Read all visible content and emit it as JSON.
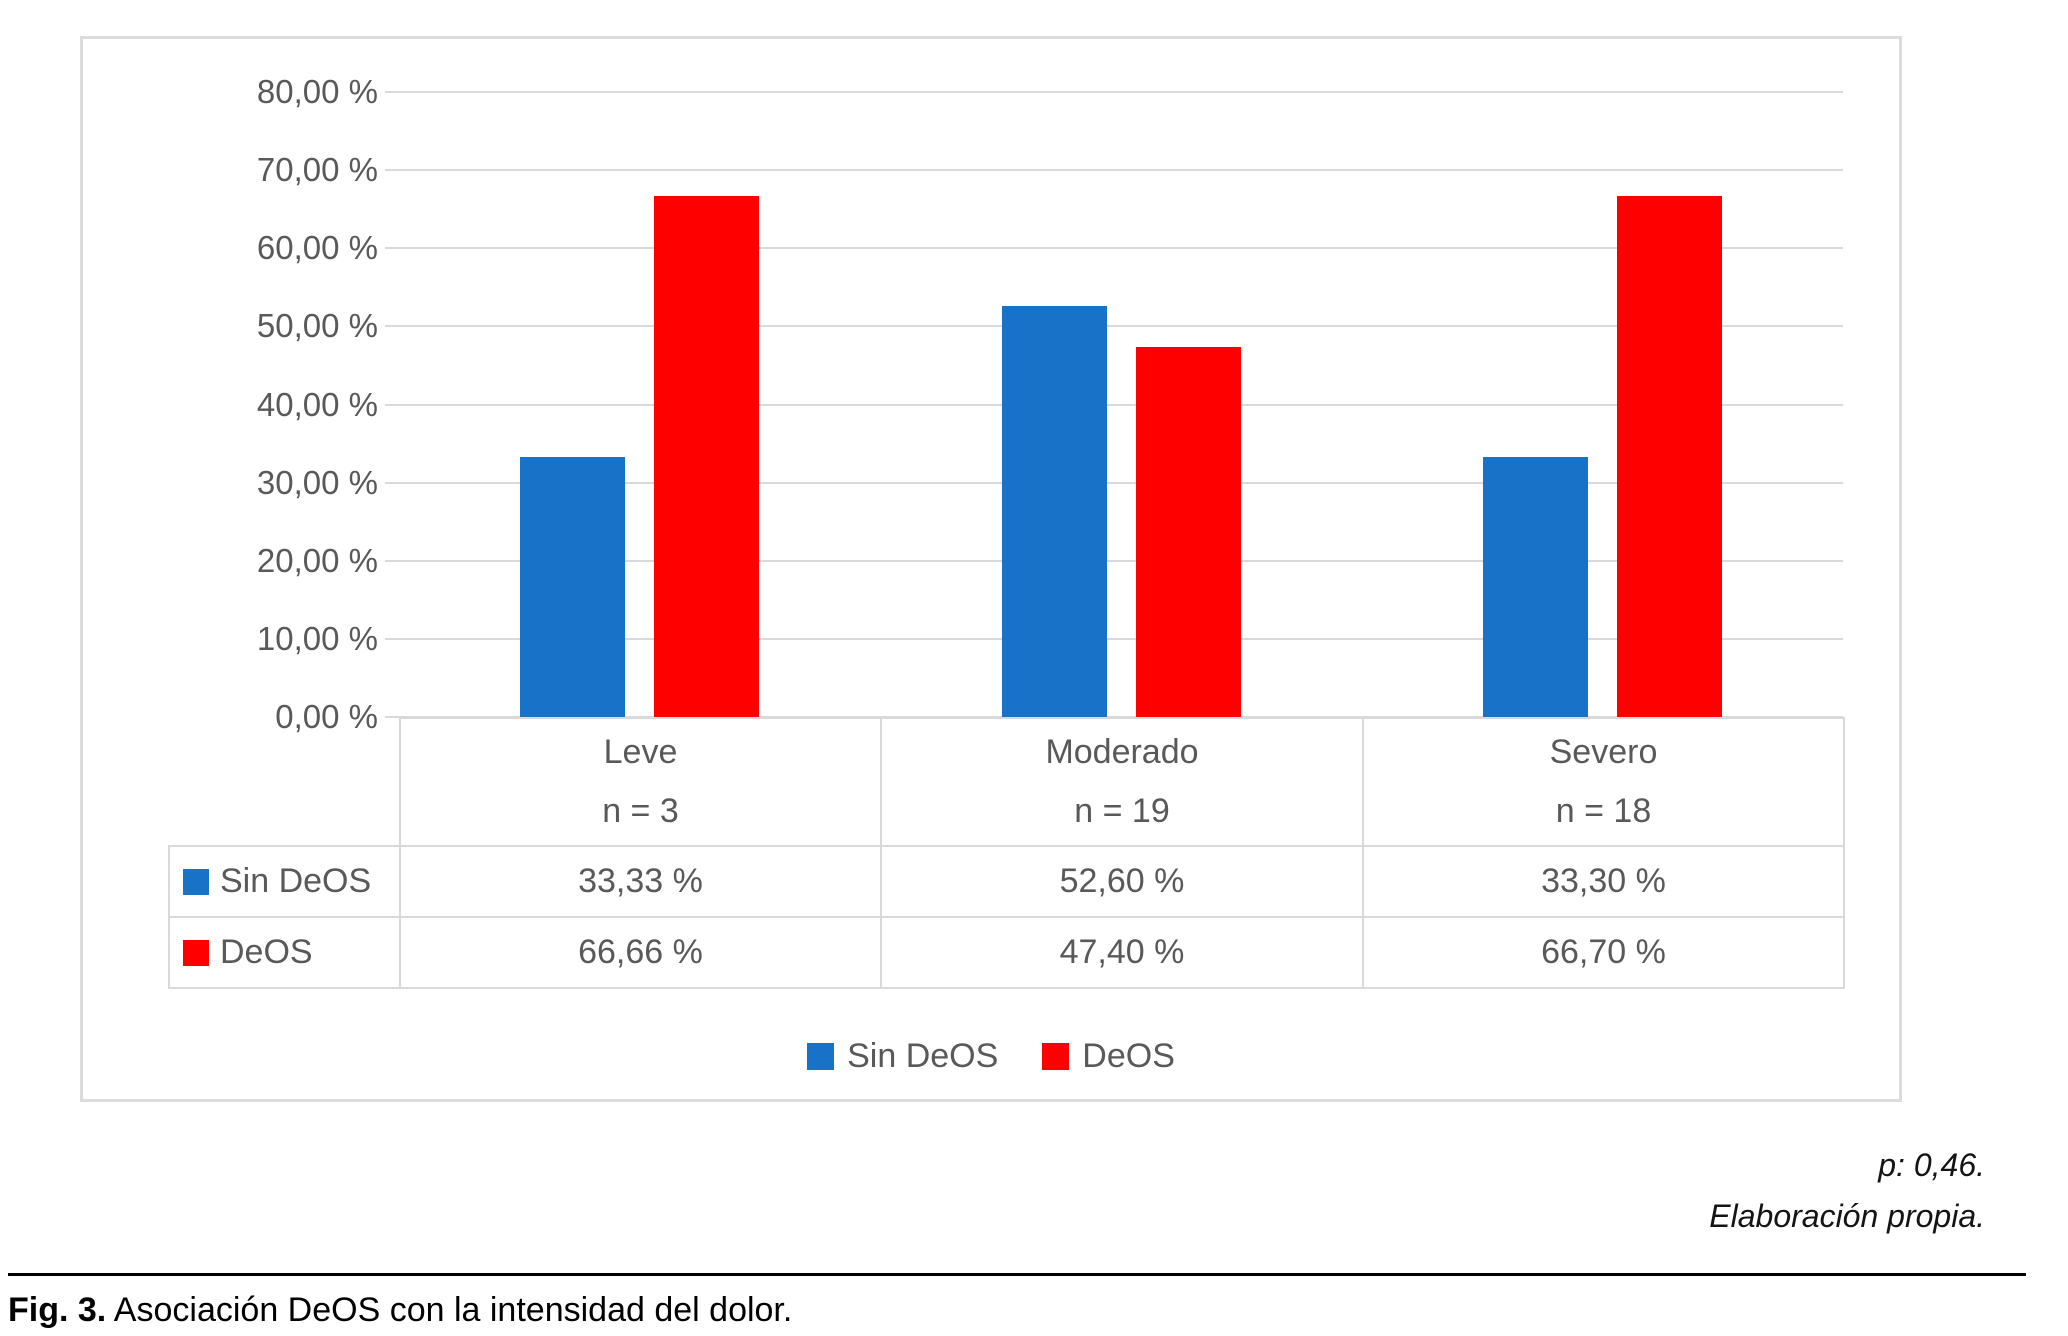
{
  "chart_data": {
    "type": "bar",
    "title": "",
    "categories": [
      "Leve",
      "Moderado",
      "Severo"
    ],
    "category_counts": [
      "n = 3",
      "n = 19",
      "n = 18"
    ],
    "series": [
      {
        "name": "Sin DeOS",
        "color": "#1772C8",
        "values": [
          33.33,
          52.6,
          33.3
        ],
        "value_labels": [
          "33,33 %",
          "52,60 %",
          "33,30 %"
        ]
      },
      {
        "name": "DeOS",
        "color": "#FF0000",
        "values": [
          66.66,
          47.4,
          66.7
        ],
        "value_labels": [
          "66,66 %",
          "47,40 %",
          "66,70 %"
        ]
      }
    ],
    "y_axis": {
      "min": 0,
      "max": 80,
      "step": 10,
      "tick_labels": [
        "80,00 %",
        "70,00 %",
        "60,00 %",
        "50,00 %",
        "40,00 %",
        "30,00 %",
        "20,00 %",
        "10,00 %",
        "0,00 %"
      ]
    },
    "grid": true,
    "legend_position": "bottom",
    "show_data_table": true,
    "text_color": "#595959",
    "gridline_color": "#D9D9D9",
    "table_border_color": "#D9D9D9"
  },
  "figure": {
    "footnote_p": "p: 0,46.",
    "footnote_source": "Elaboración propia.",
    "caption_label": "Fig. 3.",
    "caption_text": " Asociación DeOS con la intensidad del dolor."
  }
}
